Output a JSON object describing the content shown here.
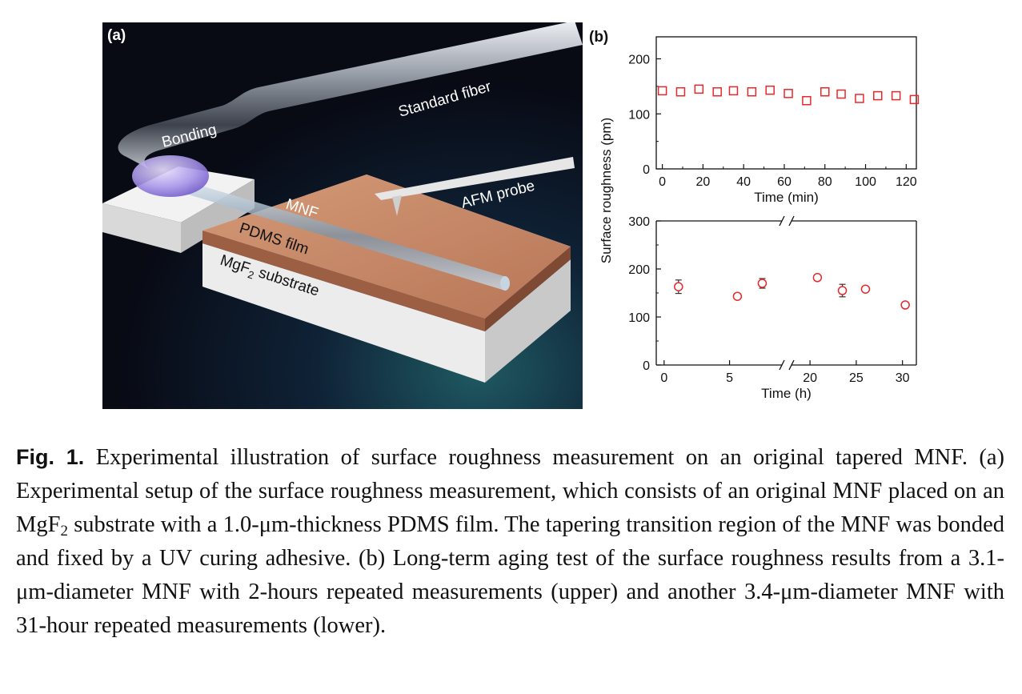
{
  "panel_a": {
    "label": "(a)",
    "labels": {
      "standard_fiber": "Standard fiber",
      "bonding": "Bonding",
      "afm_probe": "AFM probe",
      "mnf": "MNF",
      "pdms_film": "PDMS film",
      "substrate_prefix": "MgF",
      "substrate_sub": "2",
      "substrate_suffix": " substrate"
    }
  },
  "panel_b": {
    "label": "(b)",
    "shared_ylabel": "Surface roughness (pm)"
  },
  "chart_data": [
    {
      "type": "scatter",
      "name": "upper",
      "x": [
        0,
        9,
        18,
        27,
        35,
        44,
        53,
        62,
        71,
        80,
        88,
        97,
        106,
        115,
        124
      ],
      "y": [
        142,
        140,
        145,
        140,
        142,
        140,
        143,
        137,
        124,
        140,
        136,
        128,
        133,
        133,
        126
      ],
      "xlim": [
        -3,
        125
      ],
      "ylim": [
        0,
        240
      ],
      "xticks": [
        0,
        20,
        40,
        60,
        80,
        100,
        120
      ],
      "yticks": [
        0,
        100,
        200
      ],
      "xlabel": "Time (min)",
      "ylabel": "Surface roughness (pm)",
      "marker": "square",
      "color": "#e8282b"
    },
    {
      "type": "scatter",
      "name": "lower",
      "x": [
        1.1,
        5.6,
        7.5,
        20.8,
        23.5,
        26,
        30.3
      ],
      "y": [
        163,
        143,
        170,
        182,
        155,
        158,
        125
      ],
      "yerr": [
        14,
        6,
        10,
        6,
        13,
        5,
        5
      ],
      "ylim": [
        0,
        300
      ],
      "yticks": [
        0,
        100,
        200,
        300
      ],
      "xticks": [
        0,
        5,
        20,
        25,
        30
      ],
      "xbreak": [
        9,
        18
      ],
      "xlabel": "Time (h)",
      "ylabel": "Surface roughness (pm)",
      "marker": "circle",
      "color": "#e8282b"
    }
  ],
  "caption": {
    "fig_label": "Fig. 1.",
    "part1": " Experimental illustration of surface roughness measurement on an original tapered MNF. (a) Experimental setup of the surface roughness measurement, which consists of an original MNF placed on an MgF",
    "sub": "2",
    "part2": " substrate with a 1.0-μm-thickness PDMS film. The tapering transition region of the MNF was bonded and fixed by a UV curing adhesive. (b) Long-term aging test of the surface roughness results from a 3.1-μm-diameter MNF with 2-hours repeated measurements (upper) and another 3.4-μm-diameter MNF with 31-hour repeated measurements (lower)."
  }
}
